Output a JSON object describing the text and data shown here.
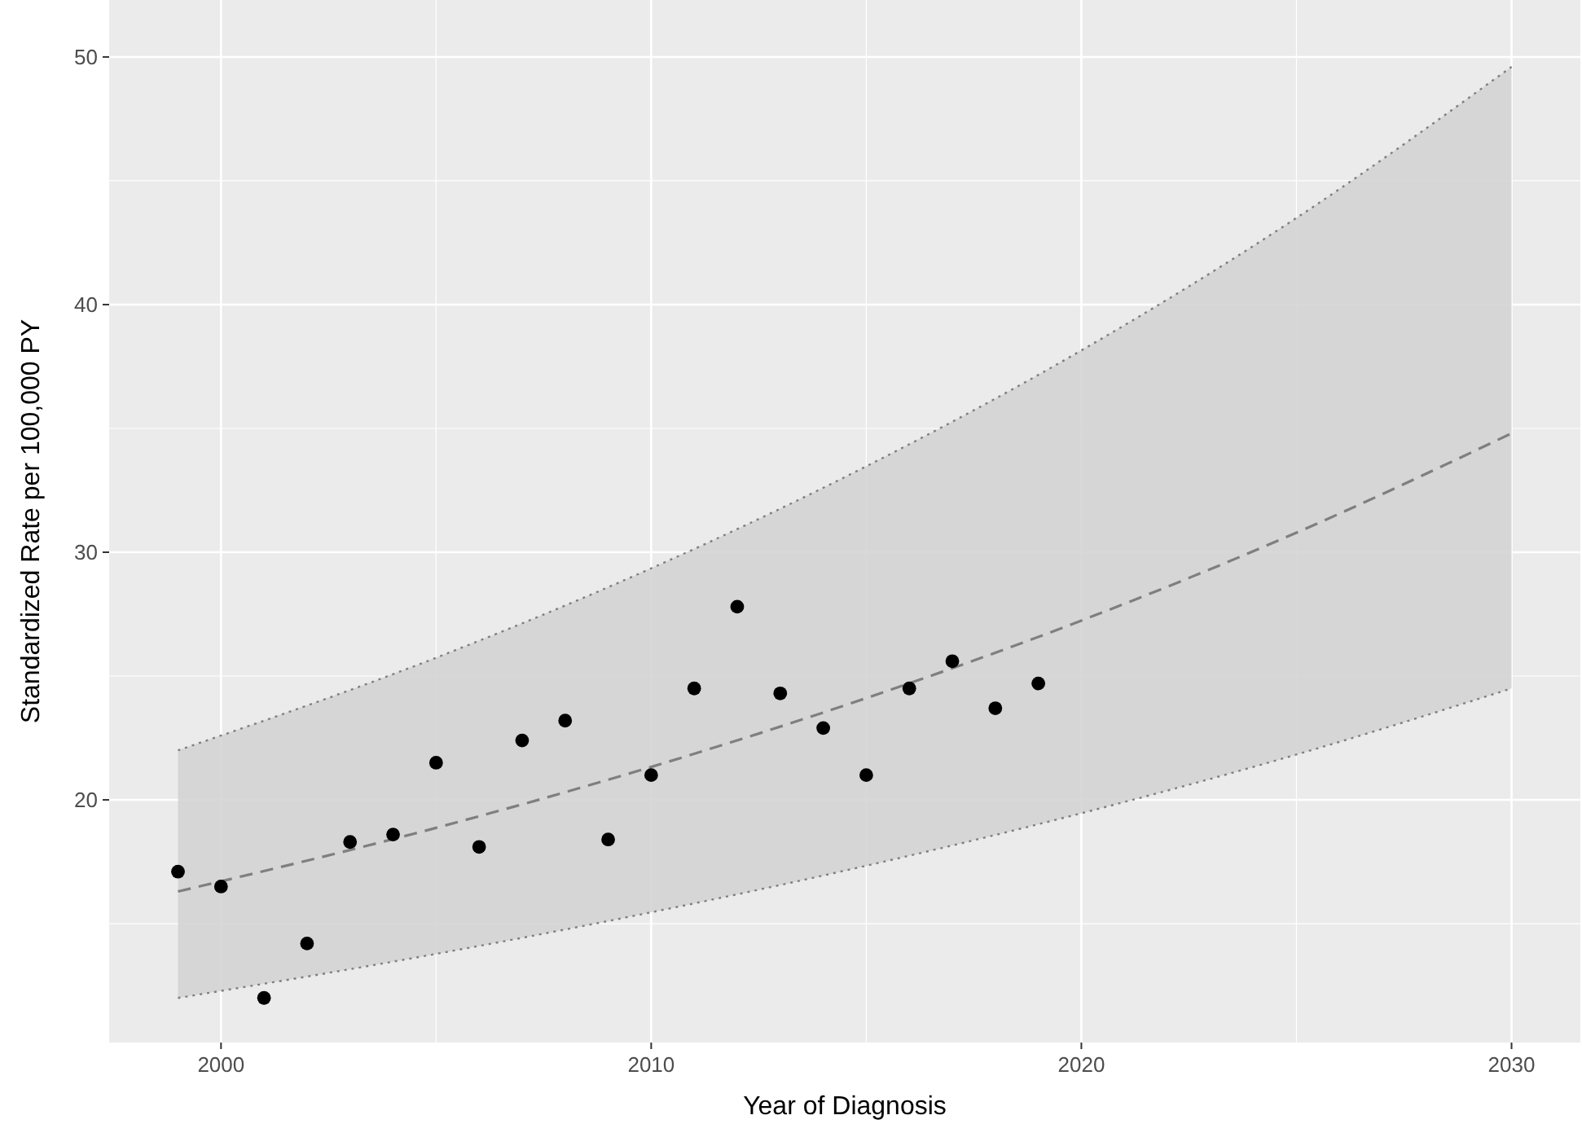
{
  "chart_data": {
    "type": "scatter",
    "xlabel": "Year of Diagnosis",
    "ylabel": "Standardized Rate per 100,000 PY",
    "xlim": [
      1997.4,
      2031.6
    ],
    "ylim": [
      10.2,
      52.3
    ],
    "xticks": [
      2000,
      2010,
      2020,
      2030
    ],
    "yticks": [
      20,
      30,
      40,
      50
    ],
    "grid": true,
    "series": [
      {
        "type": "line",
        "color": "#7f7f7f",
        "line_style": "dashed",
        "marker": "none",
        "x": [
          1999,
          2005,
          2010,
          2015,
          2020,
          2025,
          2030
        ],
        "values": [
          16.3,
          18.87,
          21.33,
          24.11,
          27.24,
          30.79,
          34.8
        ],
        "lower": [
          12.0,
          13.78,
          15.46,
          17.34,
          19.46,
          21.83,
          24.5
        ],
        "upper": [
          22.0,
          25.74,
          29.35,
          33.47,
          38.15,
          43.5,
          49.6
        ]
      },
      {
        "type": "line",
        "color": "#7f7f7f",
        "line_style": "dotted",
        "marker": "none",
        "x": [
          1999,
          2005,
          2010,
          2015,
          2020,
          2025,
          2030
        ],
        "values": [
          12.0,
          13.78,
          15.46,
          17.34,
          19.46,
          21.83,
          24.5
        ]
      },
      {
        "type": "line",
        "color": "#7f7f7f",
        "line_style": "dotted",
        "marker": "none",
        "x": [
          1999,
          2005,
          2010,
          2015,
          2020,
          2025,
          2030
        ],
        "values": [
          22.0,
          25.74,
          29.35,
          33.47,
          38.15,
          43.5,
          49.6
        ]
      },
      {
        "color": "#000000",
        "marker": "circle",
        "x": [
          1999,
          2000,
          2001,
          2002,
          2003,
          2004,
          2005,
          2006,
          2007,
          2008,
          2009,
          2010,
          2011,
          2012,
          2013,
          2014,
          2015,
          2016,
          2017,
          2018,
          2019
        ],
        "values": [
          17.1,
          16.5,
          12.0,
          14.2,
          18.3,
          18.6,
          21.5,
          18.1,
          22.4,
          23.2,
          18.4,
          21.0,
          24.5,
          27.8,
          24.3,
          22.9,
          21.0,
          24.5,
          25.6,
          23.7,
          24.7
        ]
      }
    ]
  }
}
